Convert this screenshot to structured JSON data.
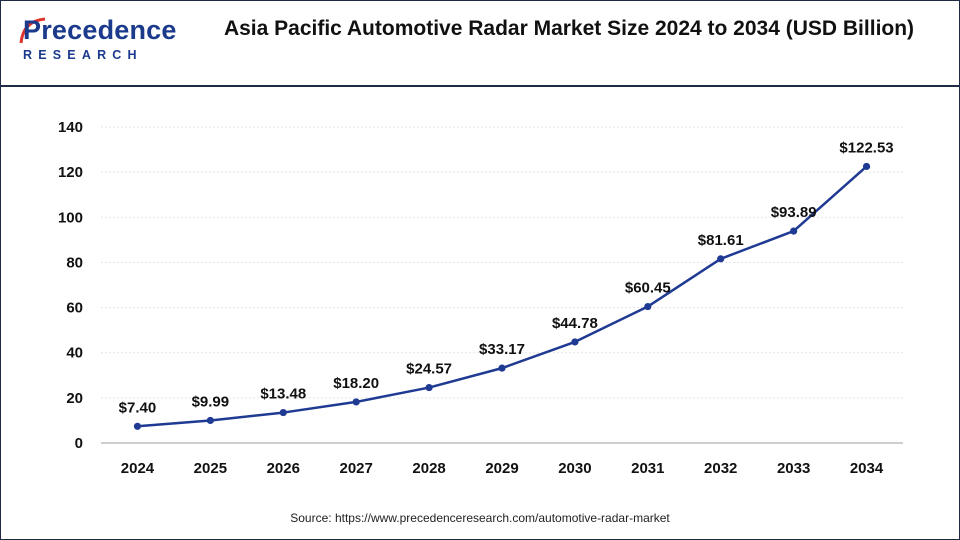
{
  "brand": {
    "logo_word": "Precedence",
    "logo_sub": "RESEARCH"
  },
  "colors": {
    "line": "#1f3a93",
    "marker": "#1f3a93",
    "border": "#1f2a44",
    "brand": "#1b3a8c"
  },
  "chart_data": {
    "type": "line",
    "title": "Asia Pacific Automotive Radar Market Size 2024 to 2034 (USD Billion)",
    "xlabel": "",
    "ylabel": "",
    "categories": [
      "2024",
      "2025",
      "2026",
      "2027",
      "2028",
      "2029",
      "2030",
      "2031",
      "2032",
      "2033",
      "2034"
    ],
    "values": [
      7.4,
      9.99,
      13.48,
      18.2,
      24.57,
      33.17,
      44.78,
      60.45,
      81.61,
      93.89,
      122.53
    ],
    "data_labels": [
      "$7.40",
      "$9.99",
      "$13.48",
      "$18.20",
      "$24.57",
      "$33.17",
      "$44.78",
      "$60.45",
      "$81.61",
      "$93.89",
      "$122.53"
    ],
    "ylim": [
      0,
      140
    ],
    "yticks": [
      "0",
      "20",
      "40",
      "60",
      "80",
      "100",
      "120",
      "140"
    ],
    "grid": true,
    "legend": "none"
  },
  "source": "Source: https://www.precedenceresearch.com/automotive-radar-market"
}
